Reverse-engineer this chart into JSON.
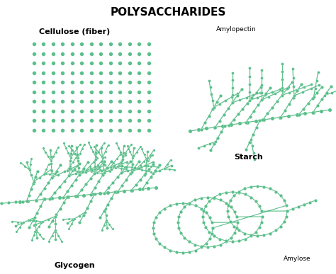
{
  "title": "POLYSACCHARIDES",
  "title_fontsize": 11,
  "title_fontweight": "bold",
  "dot_color": "#5abf8a",
  "bg_color": "#ffffff",
  "label_cellulose": "Cellulose (fiber)",
  "label_amylopectin": "Amylopectin",
  "label_starch": "Starch",
  "label_glycogen": "Glycogen",
  "label_amylose": "Amylose",
  "label_fontsize_large": 8,
  "label_fontsize_small": 6.5
}
